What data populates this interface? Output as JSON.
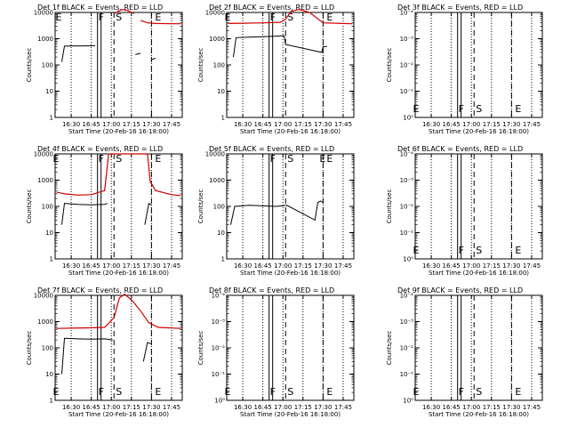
{
  "ytick_log_counts": [
    "1",
    "10",
    "100",
    "1000",
    "10000"
  ],
  "ytick_exp": [
    "10⁰",
    "10⁻¹",
    "10⁻²",
    "10⁻³",
    "10⁻⁴"
  ],
  "xticks": [
    "16:30",
    "16:45",
    "17:00",
    "17:15",
    "17:30",
    "17:45"
  ],
  "ylabel": "Counts/sec",
  "xlabel": "Start Time (20-Feb-16 16:18:00)",
  "marker_labels": {
    "E": "E",
    "F": "F",
    "S": "S"
  },
  "colors": {
    "events": "#000000",
    "lld": "#cc0000",
    "axes": "#000000"
  },
  "chart_data": [
    {
      "title": "Det 1f BLACK = Events, RED = LLD",
      "type": "line",
      "yscale": "log",
      "ylim": [
        1,
        10000
      ],
      "series": [
        {
          "color": "events",
          "x": [
            "16:23",
            "16:25",
            "16:30",
            "16:40",
            "16:45",
            "16:48",
            "17:17",
            "17:18",
            "17:21",
            "17:22",
            "17:28",
            "17:30",
            "17:33"
          ],
          "y": [
            130,
            520,
            530,
            530,
            540,
            540,
            null,
            250,
            270,
            280,
            null,
            160,
            180
          ]
        },
        {
          "color": "lld",
          "x": [
            "17:03",
            "17:05",
            "17:08",
            "17:12",
            "17:17",
            "17:18",
            "17:22",
            "17:27",
            "17:33",
            "17:45",
            "17:52"
          ],
          "y": [
            9000,
            11000,
            13000,
            12000,
            9000,
            null,
            5000,
            4000,
            3800,
            3700,
            3700
          ]
        }
      ],
      "markers": {
        "E1": "16:21",
        "F": "16:51",
        "S": "17:02",
        "E2": "17:30"
      }
    },
    {
      "title": "Det 2f BLACK = Events, RED = LLD",
      "type": "line",
      "yscale": "log",
      "ylim": [
        1,
        10000
      ],
      "series": [
        {
          "color": "events",
          "x": [
            "16:23",
            "16:25",
            "16:35",
            "16:45",
            "16:55",
            "17:01",
            "17:02",
            "17:29",
            "17:30",
            "17:33"
          ],
          "y": [
            200,
            1100,
            1150,
            1200,
            1250,
            1300,
            600,
            300,
            500,
            500
          ]
        },
        {
          "color": "lld",
          "x": [
            "16:19",
            "16:30",
            "16:45",
            "16:58",
            "17:02",
            "17:06",
            "17:12",
            "17:20",
            "17:30",
            "17:52"
          ],
          "y": [
            3800,
            3900,
            4000,
            4200,
            5500,
            11000,
            13000,
            10000,
            4000,
            3700
          ]
        }
      ],
      "markers": {
        "E1": "16:19",
        "F": "16:51",
        "S": "17:02",
        "E2": "17:30"
      }
    },
    {
      "title": "Det 3f BLACK = Events, RED = LLD",
      "type": "line",
      "yscale": "log",
      "ylim": [
        0.0001,
        1
      ],
      "series": [],
      "markers": {
        "E1": "16:19",
        "F": "16:51",
        "S": "17:02",
        "E2": "17:30"
      }
    },
    {
      "title": "Det 4f BLACK = Events, RED = LLD",
      "type": "line",
      "yscale": "log",
      "ylim": [
        1,
        10000
      ],
      "series": [
        {
          "color": "events",
          "x": [
            "16:23",
            "16:25",
            "16:35",
            "16:45",
            "16:55",
            "16:57",
            "17:23",
            "17:25",
            "17:28",
            "17:30"
          ],
          "y": [
            20,
            130,
            120,
            115,
            120,
            130,
            null,
            20,
            130,
            110
          ]
        },
        {
          "color": "lld",
          "x": [
            "16:19",
            "16:25",
            "16:35",
            "16:45",
            "16:55",
            "16:58",
            "17:27",
            "17:29",
            "17:33",
            "17:45",
            "17:52"
          ],
          "y": [
            350,
            300,
            270,
            280,
            400,
            10000,
            10000,
            900,
            400,
            280,
            260
          ]
        }
      ],
      "markers": {
        "E1": "16:19",
        "F": "16:51",
        "S": "17:02",
        "E2": "17:30"
      }
    },
    {
      "title": "Det 5f BLACK = Events, RED = LLD",
      "type": "line",
      "yscale": "log",
      "ylim": [
        1,
        10000
      ],
      "series": [
        {
          "color": "events",
          "x": [
            "16:21",
            "16:24",
            "16:35",
            "16:45",
            "16:55",
            "17:03",
            "17:24",
            "17:26",
            "17:28",
            "17:30"
          ],
          "y": [
            20,
            100,
            110,
            105,
            100,
            110,
            30,
            140,
            160,
            140
          ]
        }
      ],
      "markers": {
        "E1": "17:30",
        "F": "16:51",
        "S": "17:02",
        "E2": "17:30"
      }
    },
    {
      "title": "Det 6f BLACK = Events, RED = LLD",
      "type": "line",
      "yscale": "log",
      "ylim": [
        0.0001,
        1
      ],
      "series": [],
      "markers": {
        "E1": "16:19",
        "F": "16:51",
        "S": "17:02",
        "E2": "17:30"
      }
    },
    {
      "title": "Det 7f BLACK = Events, RED = LLD",
      "type": "line",
      "yscale": "log",
      "ylim": [
        1,
        10000
      ],
      "series": [
        {
          "color": "events",
          "x": [
            "16:23",
            "16:25",
            "16:35",
            "16:45",
            "16:55",
            "17:01",
            "17:21",
            "17:24",
            "17:27",
            "17:30"
          ],
          "y": [
            10,
            230,
            220,
            215,
            220,
            200,
            null,
            30,
            160,
            140
          ]
        },
        {
          "color": "lld",
          "x": [
            "16:19",
            "16:30",
            "16:45",
            "16:55",
            "17:02",
            "17:06",
            "17:10",
            "17:16",
            "17:22",
            "17:28",
            "17:35",
            "17:52"
          ],
          "y": [
            550,
            560,
            580,
            600,
            1400,
            8000,
            11000,
            6000,
            2500,
            900,
            600,
            550
          ]
        }
      ],
      "markers": {
        "E1": "16:19",
        "F": "16:51",
        "S": "17:02",
        "E2": "17:30"
      }
    },
    {
      "title": "Det 8f BLACK = Events, RED = LLD",
      "type": "line",
      "yscale": "log",
      "ylim": [
        0.0001,
        1
      ],
      "series": [],
      "markers": {
        "E1": "16:19",
        "F": "16:51",
        "S": "17:02",
        "E2": "17:30"
      }
    },
    {
      "title": "Det 9f BLACK = Events, RED = LLD",
      "type": "line",
      "yscale": "log",
      "ylim": [
        0.0001,
        1
      ],
      "series": [],
      "markers": {
        "E1": "16:19",
        "F": "16:51",
        "S": "17:02",
        "E2": "17:30"
      }
    }
  ]
}
